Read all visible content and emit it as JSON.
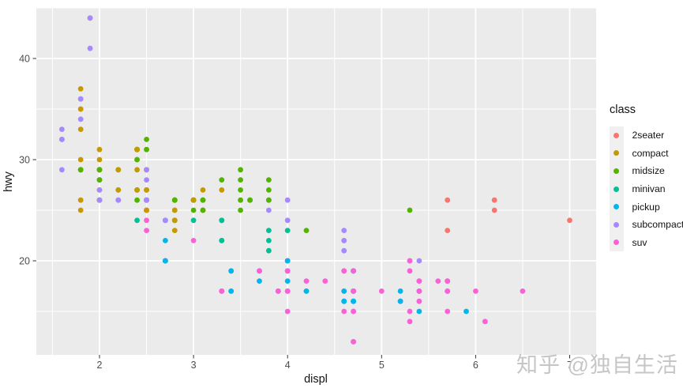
{
  "figure": {
    "background": "#FFFFFF",
    "panel_background": "#EBEBEB",
    "grid_color": "#FFFFFF",
    "tick_mark_color": "#333333",
    "tick_label_color": "#4D4D4D"
  },
  "watermark": {
    "text": "知乎 @独自生活",
    "color": "#C6C6C6"
  },
  "chart_data": {
    "type": "scatter",
    "title": "",
    "xlabel": "displ",
    "ylabel": "hwy",
    "x_ticks": [
      2,
      3,
      4,
      5,
      6,
      7
    ],
    "y_ticks": [
      20,
      30,
      40
    ],
    "x_minor_ticks": [
      1.5,
      2.5,
      3.5,
      4.5,
      5.5,
      6.5
    ],
    "y_minor_ticks": [
      15,
      25,
      35,
      45
    ],
    "xlim": [
      1.33,
      7.27
    ],
    "ylim": [
      10.7,
      45.0
    ],
    "grid": true,
    "legend_title": "class",
    "legend_position": "right",
    "categories": [
      {
        "name": "2seater",
        "color": "#F8766D"
      },
      {
        "name": "compact",
        "color": "#C49A00"
      },
      {
        "name": "midsize",
        "color": "#53B400"
      },
      {
        "name": "minivan",
        "color": "#00C094"
      },
      {
        "name": "pickup",
        "color": "#00B6EB"
      },
      {
        "name": "subcompact",
        "color": "#A58AFF"
      },
      {
        "name": "suv",
        "color": "#FB61D7"
      }
    ],
    "points_format": [
      "displ",
      "hwy",
      "category_index"
    ],
    "points": [
      [
        1.8,
        29,
        1
      ],
      [
        1.8,
        29,
        1
      ],
      [
        2.0,
        31,
        1
      ],
      [
        2.0,
        30,
        1
      ],
      [
        2.8,
        26,
        1
      ],
      [
        2.8,
        26,
        1
      ],
      [
        3.1,
        27,
        1
      ],
      [
        1.8,
        26,
        1
      ],
      [
        1.8,
        25,
        1
      ],
      [
        2.0,
        28,
        1
      ],
      [
        2.0,
        27,
        1
      ],
      [
        2.8,
        25,
        1
      ],
      [
        2.8,
        25,
        1
      ],
      [
        3.1,
        25,
        1
      ],
      [
        3.1,
        25,
        1
      ],
      [
        2.8,
        24,
        2
      ],
      [
        3.1,
        25,
        2
      ],
      [
        4.2,
        23,
        2
      ],
      [
        5.3,
        20,
        6
      ],
      [
        5.3,
        15,
        6
      ],
      [
        5.3,
        20,
        6
      ],
      [
        5.7,
        17,
        6
      ],
      [
        6.0,
        17,
        6
      ],
      [
        5.7,
        26,
        0
      ],
      [
        5.7,
        23,
        0
      ],
      [
        6.2,
        26,
        0
      ],
      [
        6.2,
        25,
        0
      ],
      [
        7.0,
        24,
        0
      ],
      [
        5.3,
        14,
        6
      ],
      [
        5.3,
        19,
        6
      ],
      [
        5.7,
        15,
        6
      ],
      [
        6.5,
        17,
        6
      ],
      [
        2.4,
        27,
        2
      ],
      [
        2.4,
        30,
        2
      ],
      [
        3.1,
        26,
        2
      ],
      [
        3.5,
        29,
        2
      ],
      [
        3.6,
        26,
        2
      ],
      [
        2.4,
        24,
        3
      ],
      [
        3.0,
        24,
        3
      ],
      [
        3.3,
        22,
        3
      ],
      [
        3.3,
        22,
        3
      ],
      [
        3.3,
        24,
        3
      ],
      [
        3.3,
        24,
        3
      ],
      [
        3.3,
        17,
        3
      ],
      [
        3.8,
        22,
        3
      ],
      [
        3.8,
        21,
        3
      ],
      [
        3.8,
        23,
        3
      ],
      [
        4.0,
        23,
        3
      ],
      [
        3.7,
        19,
        4
      ],
      [
        3.7,
        18,
        4
      ],
      [
        3.9,
        17,
        4
      ],
      [
        3.9,
        17,
        4
      ],
      [
        4.7,
        19,
        4
      ],
      [
        4.7,
        19,
        4
      ],
      [
        4.7,
        12,
        4
      ],
      [
        3.9,
        17,
        6
      ],
      [
        4.7,
        17,
        6
      ],
      [
        4.7,
        12,
        6
      ],
      [
        4.7,
        17,
        6
      ],
      [
        5.2,
        16,
        6
      ],
      [
        5.7,
        18,
        6
      ],
      [
        4.7,
        16,
        4
      ],
      [
        4.7,
        17,
        4
      ],
      [
        4.7,
        17,
        4
      ],
      [
        4.7,
        16,
        4
      ],
      [
        5.2,
        16,
        4
      ],
      [
        5.2,
        17,
        4
      ],
      [
        5.7,
        17,
        4
      ],
      [
        5.9,
        15,
        4
      ],
      [
        4.6,
        17,
        6
      ],
      [
        5.4,
        17,
        6
      ],
      [
        5.4,
        18,
        6
      ],
      [
        4.0,
        17,
        6
      ],
      [
        4.0,
        19,
        6
      ],
      [
        4.0,
        17,
        6
      ],
      [
        4.0,
        19,
        6
      ],
      [
        4.6,
        19,
        6
      ],
      [
        4.2,
        17,
        4
      ],
      [
        4.2,
        17,
        4
      ],
      [
        4.6,
        16,
        4
      ],
      [
        4.6,
        16,
        4
      ],
      [
        4.6,
        17,
        4
      ],
      [
        5.4,
        15,
        4
      ],
      [
        5.4,
        17,
        4
      ],
      [
        3.8,
        26,
        5
      ],
      [
        3.8,
        25,
        5
      ],
      [
        4.0,
        26,
        5
      ],
      [
        4.0,
        24,
        5
      ],
      [
        4.6,
        21,
        5
      ],
      [
        4.6,
        22,
        5
      ],
      [
        4.6,
        23,
        5
      ],
      [
        4.6,
        22,
        5
      ],
      [
        5.4,
        20,
        5
      ],
      [
        1.6,
        33,
        5
      ],
      [
        1.6,
        32,
        5
      ],
      [
        1.6,
        32,
        5
      ],
      [
        1.6,
        29,
        5
      ],
      [
        1.6,
        32,
        5
      ],
      [
        1.8,
        34,
        5
      ],
      [
        1.8,
        36,
        5
      ],
      [
        1.8,
        36,
        5
      ],
      [
        2.0,
        29,
        5
      ],
      [
        2.4,
        26,
        2
      ],
      [
        2.4,
        27,
        2
      ],
      [
        2.4,
        30,
        2
      ],
      [
        2.4,
        31,
        2
      ],
      [
        2.5,
        26,
        2
      ],
      [
        2.5,
        26,
        2
      ],
      [
        3.3,
        28,
        2
      ],
      [
        2.0,
        26,
        5
      ],
      [
        2.0,
        29,
        5
      ],
      [
        2.0,
        28,
        5
      ],
      [
        2.0,
        27,
        5
      ],
      [
        2.7,
        24,
        5
      ],
      [
        2.7,
        24,
        5
      ],
      [
        2.7,
        24,
        5
      ],
      [
        3.0,
        22,
        6
      ],
      [
        3.7,
        19,
        6
      ],
      [
        4.0,
        20,
        6
      ],
      [
        4.7,
        17,
        6
      ],
      [
        4.7,
        12,
        6
      ],
      [
        4.7,
        19,
        6
      ],
      [
        5.7,
        18,
        6
      ],
      [
        6.1,
        14,
        6
      ],
      [
        4.0,
        15,
        6
      ],
      [
        4.2,
        18,
        6
      ],
      [
        4.4,
        18,
        6
      ],
      [
        4.6,
        15,
        6
      ],
      [
        5.4,
        17,
        6
      ],
      [
        5.4,
        16,
        6
      ],
      [
        5.4,
        18,
        6
      ],
      [
        4.0,
        17,
        6
      ],
      [
        4.0,
        19,
        6
      ],
      [
        4.6,
        19,
        6
      ],
      [
        5.0,
        17,
        6
      ],
      [
        2.4,
        29,
        1
      ],
      [
        2.4,
        27,
        1
      ],
      [
        2.5,
        31,
        2
      ],
      [
        2.5,
        32,
        2
      ],
      [
        3.5,
        27,
        2
      ],
      [
        3.5,
        26,
        2
      ],
      [
        3.0,
        26,
        2
      ],
      [
        3.0,
        25,
        2
      ],
      [
        3.5,
        25,
        2
      ],
      [
        3.3,
        17,
        6
      ],
      [
        3.3,
        17,
        6
      ],
      [
        4.0,
        20,
        6
      ],
      [
        5.6,
        18,
        6
      ],
      [
        3.1,
        26,
        2
      ],
      [
        3.8,
        26,
        2
      ],
      [
        3.8,
        27,
        2
      ],
      [
        3.8,
        28,
        2
      ],
      [
        5.3,
        25,
        2
      ],
      [
        2.5,
        25,
        6
      ],
      [
        2.5,
        24,
        6
      ],
      [
        2.5,
        27,
        6
      ],
      [
        2.5,
        25,
        6
      ],
      [
        2.5,
        26,
        6
      ],
      [
        2.5,
        23,
        6
      ],
      [
        2.2,
        26,
        5
      ],
      [
        2.2,
        26,
        5
      ],
      [
        2.5,
        26,
        5
      ],
      [
        2.5,
        26,
        5
      ],
      [
        2.5,
        25,
        1
      ],
      [
        2.5,
        27,
        1
      ],
      [
        2.5,
        25,
        1
      ],
      [
        2.5,
        27,
        1
      ],
      [
        2.7,
        20,
        6
      ],
      [
        2.7,
        20,
        6
      ],
      [
        3.4,
        19,
        6
      ],
      [
        3.4,
        17,
        6
      ],
      [
        4.0,
        20,
        6
      ],
      [
        4.7,
        17,
        6
      ],
      [
        2.2,
        29,
        2
      ],
      [
        2.2,
        27,
        2
      ],
      [
        2.4,
        31,
        2
      ],
      [
        2.4,
        31,
        2
      ],
      [
        3.0,
        26,
        2
      ],
      [
        3.0,
        26,
        2
      ],
      [
        3.5,
        28,
        2
      ],
      [
        2.2,
        27,
        1
      ],
      [
        2.2,
        29,
        1
      ],
      [
        2.4,
        31,
        1
      ],
      [
        2.4,
        31,
        1
      ],
      [
        3.0,
        26,
        1
      ],
      [
        3.3,
        27,
        1
      ],
      [
        1.8,
        30,
        1
      ],
      [
        1.8,
        33,
        1
      ],
      [
        1.8,
        35,
        1
      ],
      [
        1.8,
        37,
        1
      ],
      [
        1.8,
        35,
        1
      ],
      [
        4.7,
        15,
        6
      ],
      [
        5.7,
        18,
        6
      ],
      [
        4.7,
        15,
        6
      ],
      [
        4.7,
        17,
        6
      ],
      [
        5.7,
        17,
        6
      ],
      [
        2.7,
        20,
        4
      ],
      [
        2.7,
        20,
        4
      ],
      [
        2.7,
        22,
        4
      ],
      [
        3.4,
        17,
        4
      ],
      [
        3.4,
        19,
        4
      ],
      [
        4.0,
        18,
        4
      ],
      [
        4.0,
        20,
        4
      ],
      [
        2.0,
        29,
        1
      ],
      [
        2.0,
        26,
        1
      ],
      [
        2.0,
        29,
        1
      ],
      [
        2.0,
        29,
        1
      ],
      [
        2.8,
        24,
        1
      ],
      [
        1.9,
        44,
        1
      ],
      [
        2.0,
        29,
        1
      ],
      [
        2.0,
        26,
        1
      ],
      [
        2.0,
        29,
        1
      ],
      [
        2.0,
        29,
        1
      ],
      [
        2.5,
        29,
        1
      ],
      [
        2.5,
        29,
        1
      ],
      [
        2.8,
        23,
        1
      ],
      [
        2.8,
        24,
        1
      ],
      [
        1.9,
        44,
        5
      ],
      [
        1.9,
        41,
        5
      ],
      [
        2.0,
        29,
        5
      ],
      [
        2.0,
        26,
        5
      ],
      [
        2.5,
        28,
        5
      ],
      [
        2.5,
        29,
        5
      ],
      [
        1.8,
        29,
        2
      ],
      [
        1.8,
        29,
        2
      ],
      [
        2.0,
        28,
        2
      ],
      [
        2.0,
        29,
        2
      ],
      [
        2.8,
        26,
        2
      ],
      [
        2.8,
        26,
        2
      ],
      [
        3.6,
        26,
        2
      ]
    ]
  }
}
